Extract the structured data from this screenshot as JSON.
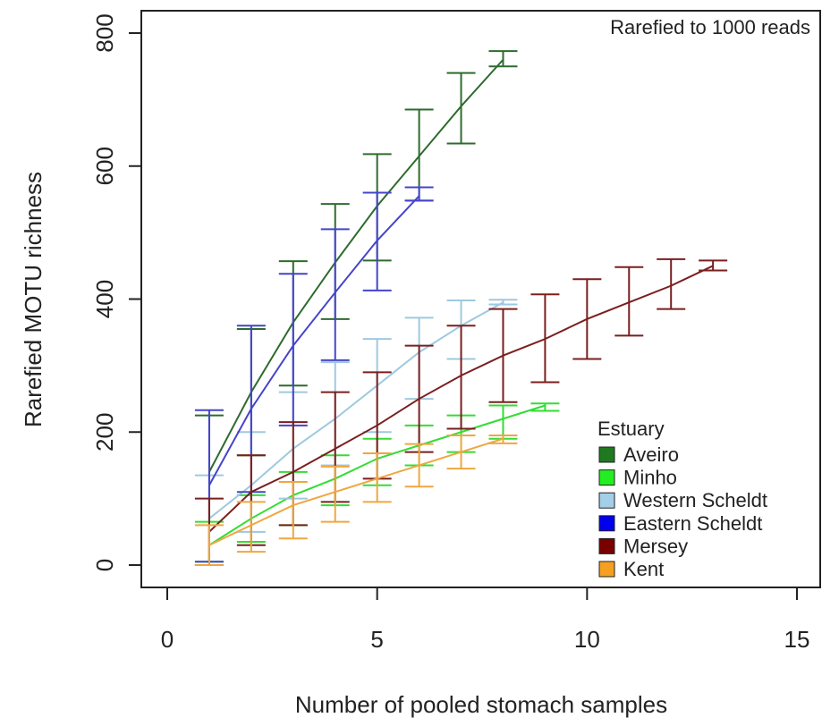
{
  "chart_data": {
    "type": "line",
    "title": "",
    "annotation": "Rarefied to 1000 reads",
    "xlabel": "Number of pooled stomach samples",
    "ylabel": "Rarefied MOTU richness",
    "xlim": [
      0,
      15
    ],
    "ylim": [
      0,
      800
    ],
    "xticks": [
      0,
      5,
      10,
      15
    ],
    "yticks": [
      0,
      200,
      400,
      600,
      800
    ],
    "grid": false,
    "legend": {
      "title": "Estuary",
      "position": "bottom-right"
    },
    "series": [
      {
        "name": "Aveiro",
        "color": "#2e6b2e",
        "swatch": "#1f7a1f",
        "x": [
          1,
          2,
          3,
          4,
          5,
          6,
          7,
          8
        ],
        "y": [
          140,
          260,
          365,
          455,
          540,
          615,
          690,
          760
        ],
        "lo": [
          0,
          165,
          270,
          370,
          458,
          548,
          634,
          750
        ],
        "hi": [
          225,
          355,
          457,
          543,
          618,
          685,
          740,
          773
        ]
      },
      {
        "name": "Minho",
        "color": "#33dd33",
        "swatch": "#22ee22",
        "x": [
          1,
          2,
          3,
          4,
          5,
          6,
          7,
          8,
          9
        ],
        "y": [
          30,
          70,
          105,
          130,
          160,
          180,
          200,
          220,
          240
        ],
        "lo": [
          5,
          35,
          60,
          90,
          120,
          150,
          170,
          190,
          232
        ],
        "hi": [
          65,
          105,
          140,
          165,
          190,
          210,
          225,
          240,
          243
        ]
      },
      {
        "name": "Western Scheldt",
        "color": "#9ec9e0",
        "swatch": "#a4cfe8",
        "x": [
          1,
          2,
          3,
          4,
          5,
          6,
          7,
          8
        ],
        "y": [
          70,
          120,
          175,
          220,
          270,
          320,
          360,
          395
        ],
        "lo": [
          0,
          50,
          100,
          150,
          200,
          250,
          310,
          392
        ],
        "hi": [
          135,
          200,
          260,
          305,
          340,
          372,
          398,
          399
        ]
      },
      {
        "name": "Eastern Scheldt",
        "color": "#4444cc",
        "swatch": "#0000ee",
        "x": [
          1,
          2,
          3,
          4,
          5,
          6
        ],
        "y": [
          120,
          235,
          330,
          410,
          488,
          555
        ],
        "lo": [
          5,
          110,
          210,
          308,
          413,
          548
        ],
        "hi": [
          233,
          360,
          438,
          505,
          560,
          568
        ]
      },
      {
        "name": "Mersey",
        "color": "#7a1f1f",
        "swatch": "#7a0000",
        "x": [
          1,
          2,
          3,
          4,
          5,
          6,
          7,
          8,
          9,
          10,
          11,
          12,
          13
        ],
        "y": [
          50,
          110,
          140,
          175,
          210,
          250,
          285,
          315,
          340,
          370,
          395,
          420,
          450
        ],
        "lo": [
          0,
          30,
          60,
          95,
          130,
          170,
          205,
          245,
          275,
          310,
          345,
          385,
          443
        ],
        "hi": [
          100,
          165,
          215,
          260,
          290,
          330,
          360,
          385,
          407,
          430,
          448,
          460,
          458
        ]
      },
      {
        "name": "Kent",
        "color": "#f0a640",
        "swatch": "#f5a020",
        "x": [
          1,
          2,
          3,
          4,
          5,
          6,
          7,
          8
        ],
        "y": [
          30,
          60,
          90,
          110,
          130,
          150,
          170,
          190
        ],
        "lo": [
          0,
          20,
          40,
          65,
          95,
          118,
          145,
          183
        ],
        "hi": [
          60,
          95,
          125,
          148,
          168,
          182,
          195,
          195
        ]
      }
    ]
  }
}
